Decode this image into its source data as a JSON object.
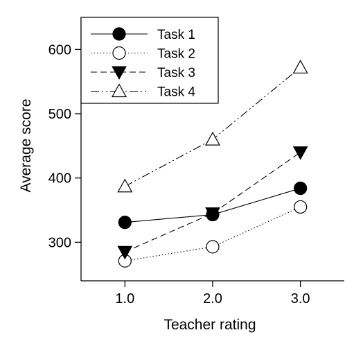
{
  "chart_data": {
    "type": "line",
    "title": "",
    "xlabel": "Teacher rating",
    "ylabel": "Average score",
    "x": [
      1.0,
      2.0,
      3.0
    ],
    "x_tick_labels": [
      "1.0",
      "2.0",
      "3.0"
    ],
    "xlim": [
      0.5,
      3.5
    ],
    "ylim": [
      240,
      650
    ],
    "y_ticks": [
      300,
      400,
      500,
      600
    ],
    "y_tick_labels": [
      "300",
      "400",
      "500",
      "600"
    ],
    "grid": false,
    "legend_position": "top-left",
    "series": [
      {
        "name": "Task 1",
        "values": [
          331,
          343,
          384
        ],
        "marker": "filled-circle",
        "line": "solid"
      },
      {
        "name": "Task 2",
        "values": [
          271,
          293,
          355
        ],
        "marker": "open-circle",
        "line": "dotted"
      },
      {
        "name": "Task 3",
        "values": [
          285,
          345,
          440
        ],
        "marker": "filled-triangle-down",
        "line": "dashed"
      },
      {
        "name": "Task 4",
        "values": [
          387,
          460,
          572
        ],
        "marker": "open-triangle-up",
        "line": "dash-dot-dot"
      }
    ]
  }
}
